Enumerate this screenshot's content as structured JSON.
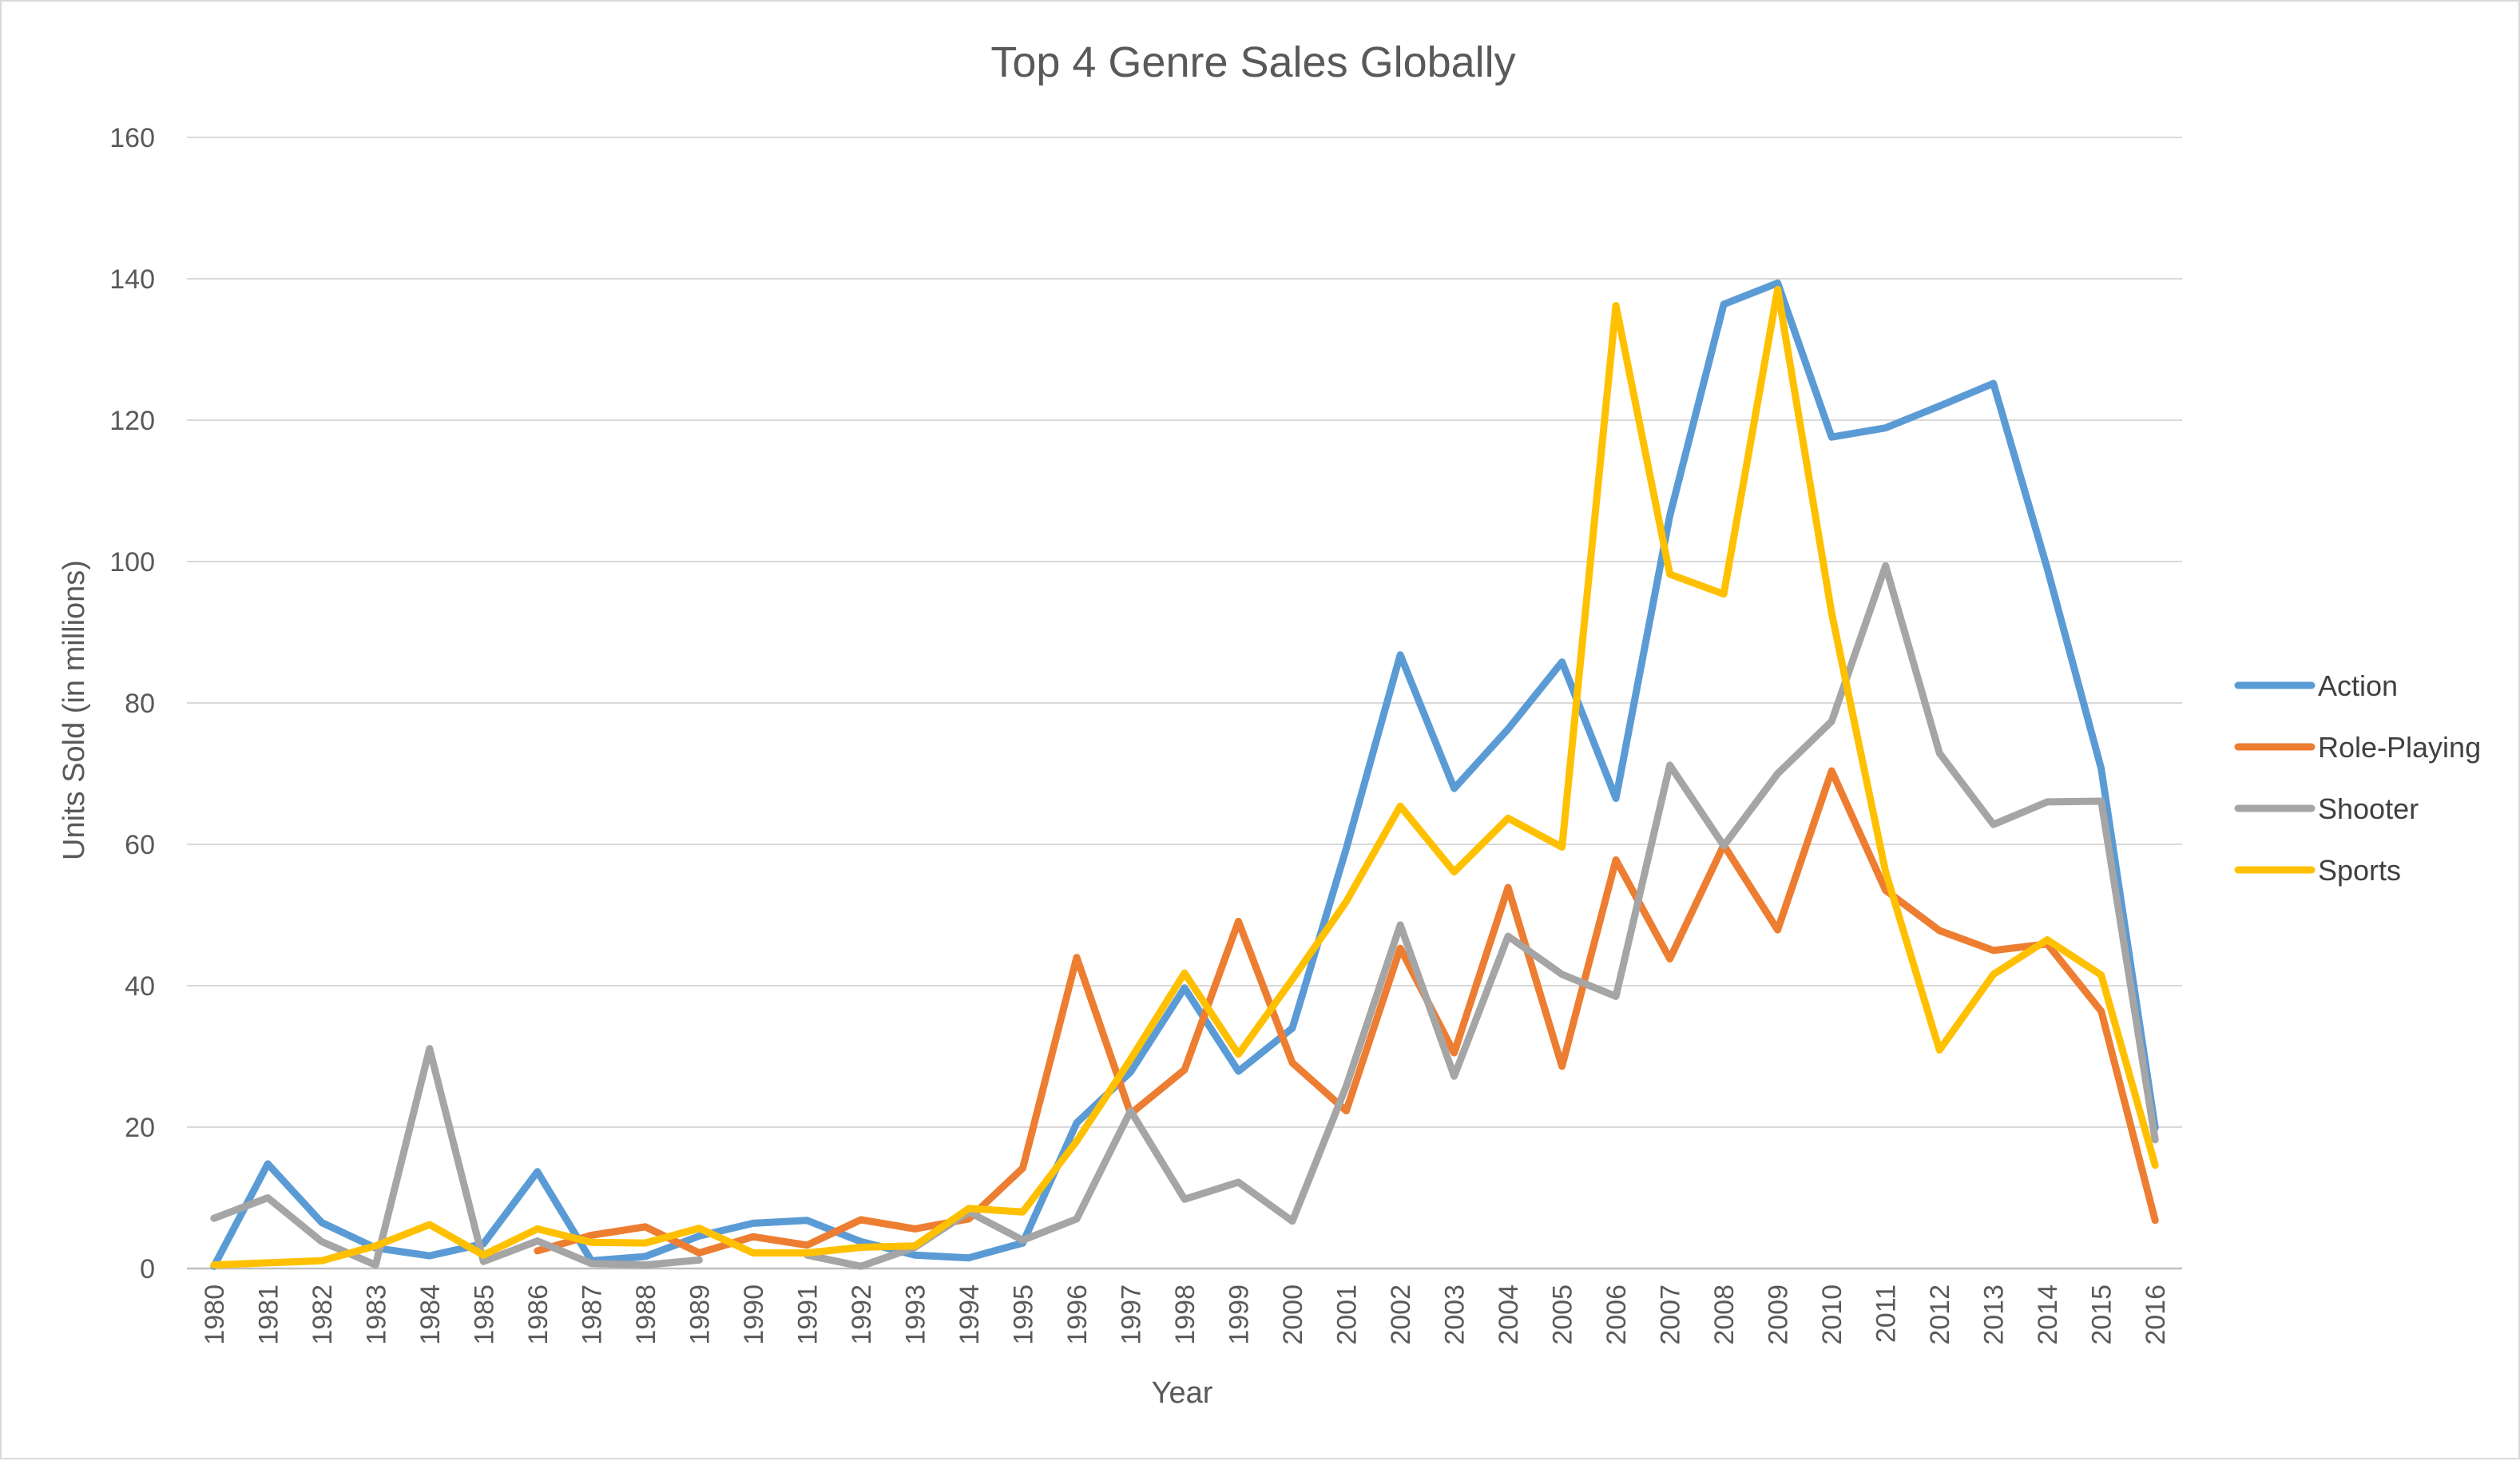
{
  "chart_data": {
    "type": "line",
    "title": "Top 4 Genre Sales Globally",
    "xlabel": "Year",
    "ylabel": "Units Sold (in millions)",
    "ylim": [
      0,
      160
    ],
    "yticks": [
      0,
      20,
      40,
      60,
      80,
      100,
      120,
      140,
      160
    ],
    "grid": true,
    "legend_position": "right",
    "categories": [
      "1980",
      "1981",
      "1982",
      "1983",
      "1984",
      "1985",
      "1986",
      "1987",
      "1988",
      "1989",
      "1990",
      "1991",
      "1992",
      "1993",
      "1994",
      "1995",
      "1996",
      "1997",
      "1998",
      "1999",
      "2000",
      "2001",
      "2002",
      "2003",
      "2004",
      "2005",
      "2006",
      "2007",
      "2008",
      "2009",
      "2010",
      "2011",
      "2012",
      "2013",
      "2014",
      "2015",
      "2016"
    ],
    "series": [
      {
        "name": "Action",
        "color": "#5b9bd5",
        "values": [
          0.3,
          14.8,
          6.5,
          2.9,
          1.8,
          3.5,
          13.7,
          1.1,
          1.7,
          4.6,
          6.4,
          6.8,
          3.8,
          1.9,
          1.5,
          3.6,
          20.6,
          27.8,
          39.7,
          27.9,
          34.0,
          59.4,
          86.8,
          67.9,
          76.3,
          85.8,
          66.5,
          106.5,
          136.4,
          139.4,
          117.6,
          118.9,
          122.0,
          125.2,
          99.0,
          70.7,
          19.9
        ]
      },
      {
        "name": "Role-Playing",
        "color": "#ed7d31",
        "values": [
          null,
          null,
          null,
          null,
          null,
          null,
          2.5,
          4.7,
          5.9,
          2.2,
          4.5,
          3.3,
          6.9,
          5.6,
          7.0,
          14.2,
          44.0,
          21.9,
          28.1,
          49.1,
          29.1,
          22.3,
          45.3,
          30.5,
          53.9,
          28.6,
          57.8,
          43.8,
          59.9,
          47.9,
          70.4,
          53.5,
          47.8,
          45.0,
          45.9,
          36.4,
          6.8
        ]
      },
      {
        "name": "Shooter",
        "color": "#a5a5a5",
        "values": [
          7.1,
          10.0,
          3.8,
          0.5,
          31.1,
          1.0,
          3.9,
          0.7,
          0.5,
          1.2,
          null,
          1.9,
          0.3,
          3.0,
          8.0,
          4.0,
          7.0,
          22.3,
          9.8,
          12.2,
          6.7,
          25.8,
          48.6,
          27.2,
          47.0,
          41.6,
          38.5,
          71.2,
          59.8,
          70.0,
          77.4,
          99.4,
          72.9,
          62.8,
          66.0,
          66.1,
          18.2
        ]
      },
      {
        "name": "Sports",
        "color": "#ffc000",
        "values": [
          0.5,
          0.8,
          1.1,
          3.2,
          6.2,
          1.9,
          5.6,
          3.7,
          3.6,
          5.7,
          2.2,
          2.2,
          3.0,
          3.2,
          8.5,
          8.0,
          18.0,
          29.6,
          41.8,
          30.3,
          40.9,
          51.9,
          65.4,
          56.1,
          63.7,
          59.6,
          136.2,
          98.2,
          95.4,
          138.5,
          92.7,
          56.1,
          30.9,
          41.6,
          46.5,
          41.5,
          14.6
        ]
      }
    ]
  }
}
